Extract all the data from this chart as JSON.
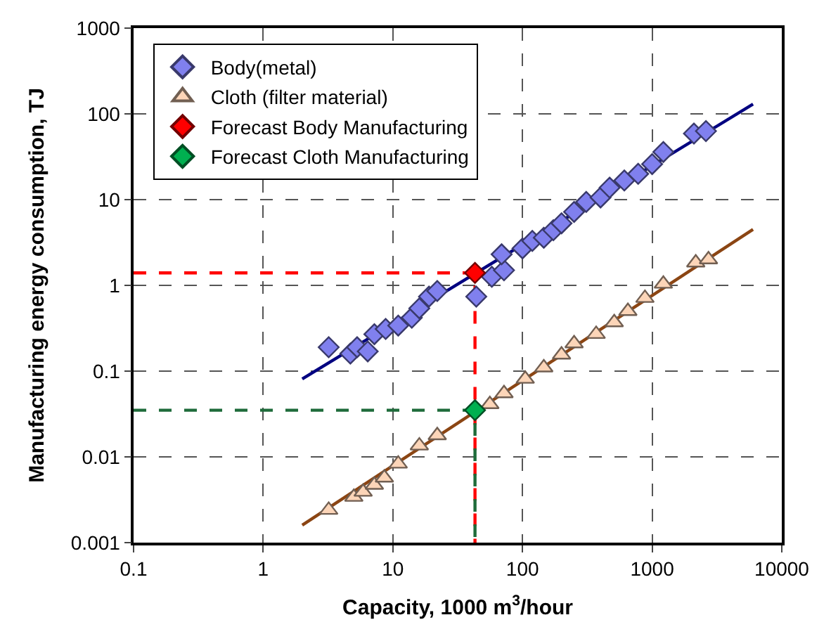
{
  "chart_data": {
    "type": "scatter",
    "xlabel": "Capacity, 1000 m$^{3}$/hour",
    "ylabel": "Manufacturing energy consumption, TJ",
    "log": "xy",
    "grid": true,
    "legend": "top left",
    "xlim": [
      0.1,
      10000
    ],
    "xticks": [
      0.1,
      1,
      10,
      100,
      1000,
      10000
    ],
    "ylim": [
      0.001,
      1000
    ],
    "yticks": [
      0.001,
      0.01,
      0.1,
      1,
      10,
      100,
      1000
    ],
    "series": [
      {
        "type": "line",
        "color": "#ff0000",
        "line_style": "dashed",
        "marker": "none",
        "x": [
          0.1,
          43,
          43
        ],
        "values": [
          1.4,
          1.4,
          0.001
        ]
      },
      {
        "type": "line",
        "color": "#1e6b3a",
        "line_style": "dashed",
        "marker": "none",
        "x": [
          0.1,
          43,
          43
        ],
        "values": [
          0.035,
          0.035,
          0.001
        ]
      },
      {
        "type": "line",
        "color": "#000080",
        "line_style": "solid",
        "marker": "none",
        "x": [
          2,
          6000
        ],
        "values": [
          0.081,
          130
        ]
      },
      {
        "type": "line",
        "color": "#8b4513",
        "line_style": "solid",
        "marker": "none",
        "x": [
          2,
          6000
        ],
        "values": [
          0.0016,
          4.5
        ]
      },
      {
        "name": "Body(metal)",
        "marker": "diamond",
        "color": "#8080ee",
        "x": [
          3.2,
          4.7,
          5.3,
          6.4,
          7.2,
          8.8,
          11,
          14,
          16,
          19,
          22,
          44,
          58,
          72,
          69,
          100,
          119,
          146,
          173,
          200,
          250,
          310,
          400,
          470,
          610,
          780,
          1000,
          1220,
          2100,
          2600
        ],
        "values": [
          0.19,
          0.16,
          0.19,
          0.17,
          0.27,
          0.31,
          0.34,
          0.42,
          0.54,
          0.74,
          0.86,
          0.74,
          1.26,
          1.5,
          2.3,
          2.7,
          3.3,
          3.6,
          4.4,
          5.3,
          7.2,
          9.4,
          10.6,
          13.8,
          16.7,
          20,
          26,
          36,
          59,
          63
        ]
      },
      {
        "name": "Cloth (filter material)",
        "marker": "triangle",
        "color": "#fcd5b8",
        "x": [
          3.2,
          5.0,
          5.9,
          7.2,
          8.6,
          11,
          16,
          22,
          56,
          72,
          105,
          146,
          200,
          250,
          370,
          510,
          650,
          880,
          1220,
          2170,
          2720
        ],
        "values": [
          0.0024,
          0.0034,
          0.0039,
          0.0047,
          0.0057,
          0.0083,
          0.0135,
          0.0178,
          0.041,
          0.055,
          0.081,
          0.11,
          0.155,
          0.21,
          0.27,
          0.37,
          0.5,
          0.71,
          1.04,
          1.84,
          2.0
        ]
      },
      {
        "name": "Forecast Body Manufacturing",
        "marker": "diamond",
        "color": "#ff0000",
        "x": [
          43
        ],
        "values": [
          1.4
        ]
      },
      {
        "name": "Forecast Cloth Manufacturing",
        "marker": "diamond",
        "color": "#00b050",
        "x": [
          43
        ],
        "values": [
          0.035
        ]
      }
    ]
  }
}
